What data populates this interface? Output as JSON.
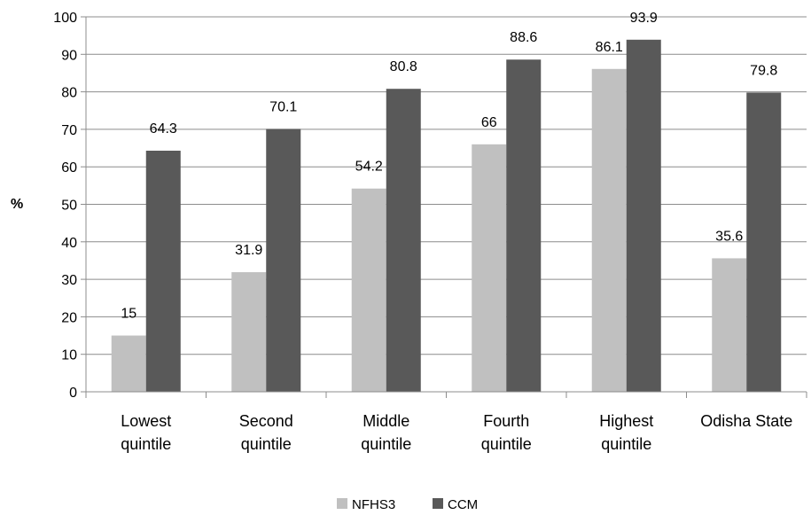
{
  "chart_data": {
    "type": "bar",
    "ylabel": "%",
    "ylim": [
      0,
      100
    ],
    "yticks": [
      "0",
      "10",
      "20",
      "30",
      "40",
      "50",
      "60",
      "70",
      "80",
      "90",
      "100"
    ],
    "grid": true,
    "legend_position": "bottom",
    "categories": [
      [
        "Lowest",
        "quintile"
      ],
      [
        "Second",
        "quintile"
      ],
      [
        "Middle",
        "quintile"
      ],
      [
        "Fourth",
        "quintile"
      ],
      [
        "Highest",
        "quintile"
      ],
      [
        "Odisha State"
      ]
    ],
    "series": [
      {
        "name": "NFHS3",
        "color": "#c0c0c0",
        "values": [
          15,
          31.9,
          54.2,
          66,
          86.1,
          35.6
        ]
      },
      {
        "name": "CCM",
        "color": "#595959",
        "values": [
          64.3,
          70.1,
          80.8,
          88.6,
          93.9,
          79.8
        ]
      }
    ]
  }
}
